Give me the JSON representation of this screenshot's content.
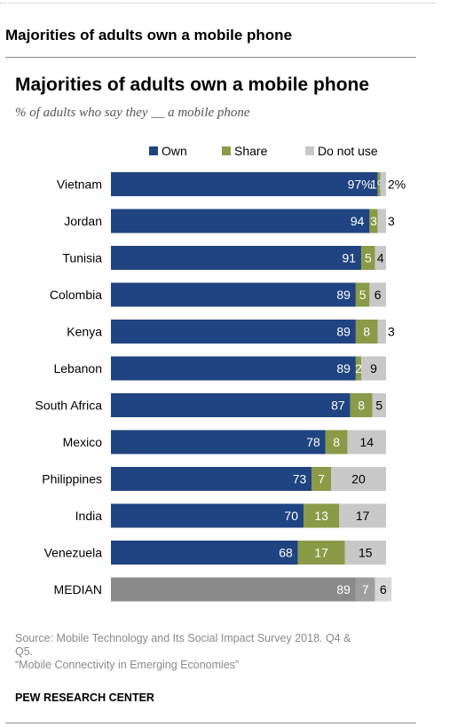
{
  "page_heading": "Majorities of adults own a mobile phone",
  "chart_data": {
    "type": "bar",
    "orientation": "horizontal",
    "stacked": true,
    "title": "Majorities of adults own a mobile phone",
    "subtitle": "% of adults who say they __ a mobile phone",
    "legend_position": "top",
    "categories": [
      "Vietnam",
      "Jordan",
      "Tunisia",
      "Colombia",
      "Kenya",
      "Lebanon",
      "South Africa",
      "Mexico",
      "Philippines",
      "India",
      "Venezuela",
      "MEDIAN"
    ],
    "series": [
      {
        "name": "Own",
        "color": "#1f4481",
        "values": [
          97,
          94,
          91,
          89,
          89,
          89,
          87,
          78,
          73,
          70,
          68,
          89
        ]
      },
      {
        "name": "Share",
        "color": "#8a9a46",
        "values": [
          1,
          3,
          5,
          5,
          8,
          2,
          8,
          8,
          7,
          13,
          17,
          7
        ]
      },
      {
        "name": "Do not use",
        "color": "#c8c8c8",
        "values": [
          2,
          3,
          4,
          6,
          3,
          9,
          5,
          14,
          20,
          17,
          15,
          6
        ]
      }
    ],
    "value_labels": [
      [
        "97%",
        "1%",
        "2%"
      ],
      [
        "94",
        "3",
        "3"
      ],
      [
        "91",
        "5",
        "4"
      ],
      [
        "89",
        "5",
        "6"
      ],
      [
        "89",
        "8",
        "3"
      ],
      [
        "89",
        "2",
        "9"
      ],
      [
        "87",
        "8",
        "5"
      ],
      [
        "78",
        "8",
        "14"
      ],
      [
        "73",
        "7",
        "20"
      ],
      [
        "70",
        "13",
        "17"
      ],
      [
        "68",
        "17",
        "15"
      ],
      [
        "89",
        "7",
        "6"
      ]
    ],
    "median_colors": [
      "#8a8a8a",
      "#9e9e9e",
      "#d8d8d8"
    ],
    "xlim": [
      0,
      100
    ]
  },
  "footer": {
    "source_lines": [
      "Source: Mobile Technology and Its Social Impact Survey 2018. Q4 &",
      "Q5.",
      "“Mobile Connectivity in Emerging Economies”"
    ],
    "org": "PEW RESEARCH CENTER"
  }
}
